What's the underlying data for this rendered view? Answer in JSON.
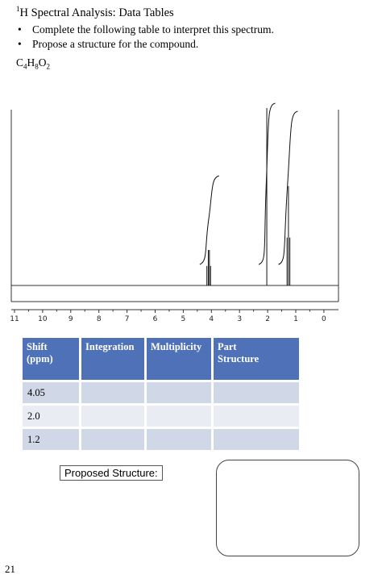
{
  "header": {
    "title_sup": "1",
    "title": "H Spectral Analysis:  Data Tables",
    "instructions": [
      "Complete the following table to interpret this spectrum.",
      "Propose a structure for the compound."
    ],
    "formula": {
      "parts": [
        "C",
        "4",
        "H",
        "8",
        "O",
        "2"
      ]
    }
  },
  "chart_data": {
    "type": "line",
    "title": "",
    "xlabel": "",
    "ylabel": "",
    "x_reversed": true,
    "xlim": [
      11,
      -0.5
    ],
    "x_ticks": [
      "11",
      "10",
      "9",
      "8",
      "7",
      "6",
      "5",
      "4",
      "3",
      "2",
      "1",
      "0"
    ],
    "grid": false,
    "peaks": [
      {
        "shift": 4.16,
        "rel_height": 0.11,
        "group": "quartet"
      },
      {
        "shift": 4.11,
        "rel_height": 0.2,
        "group": "quartet"
      },
      {
        "shift": 4.07,
        "rel_height": 0.2,
        "group": "quartet"
      },
      {
        "shift": 4.03,
        "rel_height": 0.11,
        "group": "quartet"
      },
      {
        "shift": 2.03,
        "rel_height": 1.0,
        "group": "singlet"
      },
      {
        "shift": 1.31,
        "rel_height": 0.27,
        "group": "triplet"
      },
      {
        "shift": 1.26,
        "rel_height": 0.56,
        "group": "triplet"
      },
      {
        "shift": 1.21,
        "rel_height": 0.27,
        "group": "triplet"
      }
    ],
    "integrals": [
      {
        "from": 4.3,
        "to": 3.9,
        "level": 0.55
      },
      {
        "from": 2.2,
        "to": 1.9,
        "level": 1.0
      },
      {
        "from": 1.5,
        "to": 1.1,
        "level": 0.95
      }
    ]
  },
  "table": {
    "headers": [
      {
        "line1": "Shift",
        "line2": "(ppm)"
      },
      {
        "line1": "Integration",
        "line2": ""
      },
      {
        "line1": "Multiplicity",
        "line2": ""
      },
      {
        "line1": "Part",
        "line2": "Structure"
      }
    ],
    "rows": [
      {
        "shift": "4.05",
        "integration": "",
        "multiplicity": "",
        "part": ""
      },
      {
        "shift": "2.0",
        "integration": "",
        "multiplicity": "",
        "part": ""
      },
      {
        "shift": "1.2",
        "integration": "",
        "multiplicity": "",
        "part": ""
      }
    ]
  },
  "proposed_structure_label": "Proposed Structure:",
  "page_number": "21",
  "colors": {
    "header_fill": "#4f71b8",
    "row_odd": "#d0d7e6",
    "row_even": "#e9ecf3"
  }
}
